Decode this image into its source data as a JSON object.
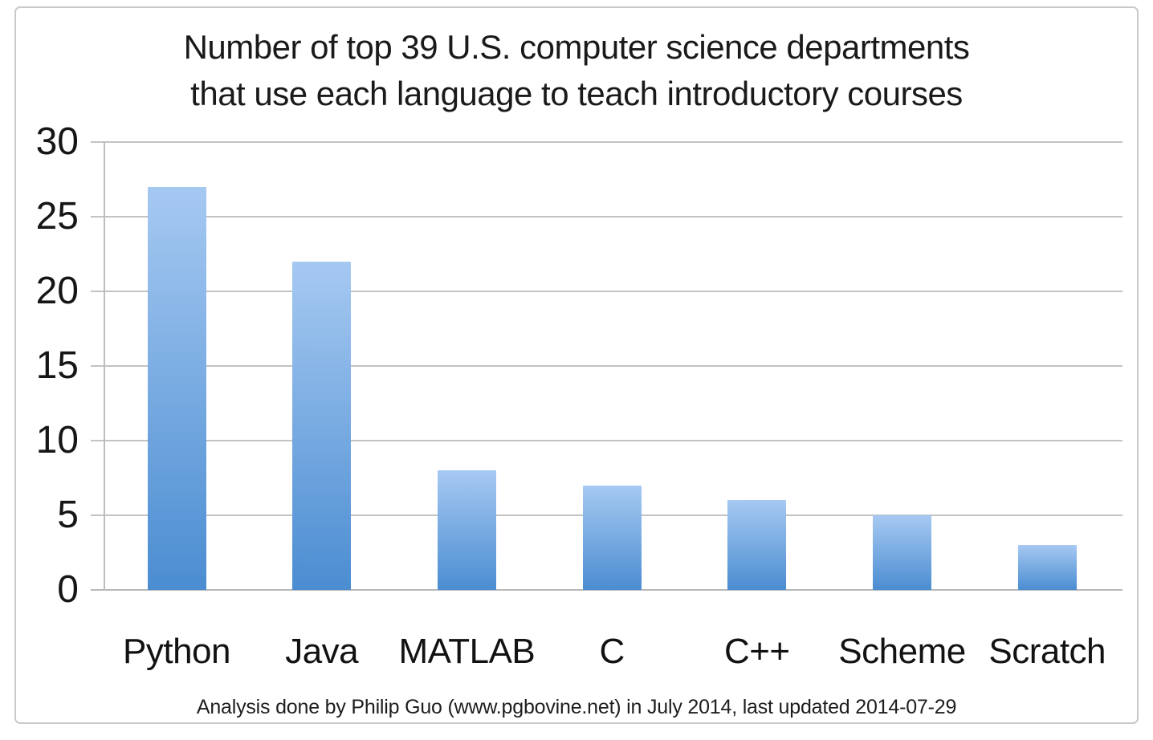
{
  "chart_data": {
    "type": "bar",
    "title_lines": [
      "Number of top 39 U.S. computer science departments",
      "that use each language to teach introductory courses"
    ],
    "categories": [
      "Python",
      "Java",
      "MATLAB",
      "C",
      "C++",
      "Scheme",
      "Scratch"
    ],
    "values": [
      27,
      22,
      8,
      7,
      6,
      5,
      3
    ],
    "y_ticks": [
      30,
      25,
      20,
      15,
      10,
      5,
      0
    ],
    "ylim": [
      0,
      30
    ],
    "grid": true,
    "legend": "none",
    "xlabel": "",
    "ylabel": "",
    "footnote": "Analysis done by Philip Guo (www.pgbovine.net) in July 2014, last updated 2014-07-29",
    "colors": {
      "bar_gradient_top": "#a6c9f2",
      "bar_gradient_bottom": "#4b8dd1",
      "gridline": "#c3c3c3",
      "zero_line": "#b8b8b8",
      "axis_line": "#bdbdbd",
      "frame_border": "#c9c9c9",
      "text": "#1a1a1a"
    }
  }
}
